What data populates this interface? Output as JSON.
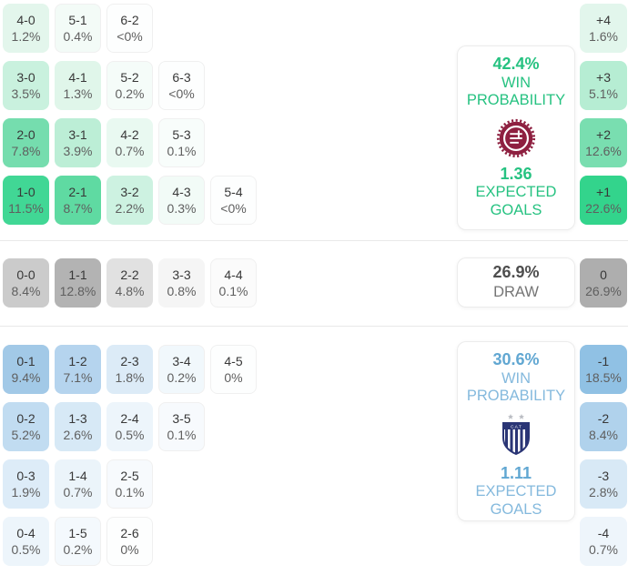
{
  "colors": {
    "green_accent": "#26c281",
    "blue_number": "#61a7d2",
    "blue_label": "#84b9dd",
    "draw_number": "#4e4e4e",
    "draw_label": "#757575"
  },
  "sections": {
    "home": {
      "win_probability": "42.4%",
      "win_probability_label": "WIN PROBABILITY",
      "expected_goals": "1.36",
      "expected_goals_label": "EXPECTED GOALS",
      "crest_icon": "circular-maroon-gear-crest-icon",
      "rows": [
        [
          {
            "score": "4-0",
            "pct": "1.2%",
            "bg": "#e3f6ec"
          },
          {
            "score": "5-1",
            "pct": "0.4%",
            "bg": "#f3fbf7"
          },
          {
            "score": "6-2",
            "pct": "<0%",
            "bg": "#fdfefe"
          }
        ],
        [
          {
            "score": "3-0",
            "pct": "3.5%",
            "bg": "#c9f1de"
          },
          {
            "score": "4-1",
            "pct": "1.3%",
            "bg": "#e0f6ea"
          },
          {
            "score": "5-2",
            "pct": "0.2%",
            "bg": "#f5fcf9"
          },
          {
            "score": "6-3",
            "pct": "<0%",
            "bg": "#fdfefe"
          }
        ],
        [
          {
            "score": "2-0",
            "pct": "7.8%",
            "bg": "#75ddae"
          },
          {
            "score": "3-1",
            "pct": "3.9%",
            "bg": "#bceed6"
          },
          {
            "score": "4-2",
            "pct": "0.7%",
            "bg": "#e9f9f1"
          },
          {
            "score": "5-3",
            "pct": "0.1%",
            "bg": "#f8fdfb"
          }
        ],
        [
          {
            "score": "1-0",
            "pct": "11.5%",
            "bg": "#41d795"
          },
          {
            "score": "2-1",
            "pct": "8.7%",
            "bg": "#5fdaa2"
          },
          {
            "score": "3-2",
            "pct": "2.2%",
            "bg": "#cdf2e1"
          },
          {
            "score": "4-3",
            "pct": "0.3%",
            "bg": "#f2fbf7"
          },
          {
            "score": "5-4",
            "pct": "<0%",
            "bg": "#fdfefe"
          }
        ]
      ],
      "diffs": [
        {
          "diff": "+4",
          "pct": "1.6%",
          "bg": "#e2f6ec"
        },
        {
          "diff": "+3",
          "pct": "5.1%",
          "bg": "#b6edd3"
        },
        {
          "diff": "+2",
          "pct": "12.6%",
          "bg": "#79deb0"
        },
        {
          "diff": "+1",
          "pct": "22.6%",
          "bg": "#33d48c"
        }
      ]
    },
    "draw": {
      "probability": "26.9%",
      "label": "DRAW",
      "rows": [
        [
          {
            "score": "0-0",
            "pct": "8.4%",
            "bg": "#cbcbcb"
          },
          {
            "score": "1-1",
            "pct": "12.8%",
            "bg": "#b3b3b3"
          },
          {
            "score": "2-2",
            "pct": "4.8%",
            "bg": "#e1e1e1"
          },
          {
            "score": "3-3",
            "pct": "0.8%",
            "bg": "#f5f5f5"
          },
          {
            "score": "4-4",
            "pct": "0.1%",
            "bg": "#fbfbfb"
          }
        ]
      ],
      "diffs": [
        {
          "diff": "0",
          "pct": "26.9%",
          "bg": "#aeaeae"
        }
      ]
    },
    "away": {
      "win_probability": "30.6%",
      "win_probability_label": "WIN PROBABILITY",
      "expected_goals": "1.11",
      "expected_goals_label": "EXPECTED GOALS",
      "crest_icon": "striped-navy-shield-crest-icon",
      "rows": [
        [
          {
            "score": "0-1",
            "pct": "9.4%",
            "bg": "#a2c9e7"
          },
          {
            "score": "1-2",
            "pct": "7.1%",
            "bg": "#b5d4ee"
          },
          {
            "score": "2-3",
            "pct": "1.8%",
            "bg": "#dcebf7"
          },
          {
            "score": "3-4",
            "pct": "0.2%",
            "bg": "#f1f8fc"
          },
          {
            "score": "4-5",
            "pct": "0%",
            "bg": "#fdfefe"
          }
        ],
        [
          {
            "score": "0-2",
            "pct": "5.2%",
            "bg": "#c1dcf1"
          },
          {
            "score": "1-3",
            "pct": "2.6%",
            "bg": "#d7e9f6"
          },
          {
            "score": "2-4",
            "pct": "0.5%",
            "bg": "#edf5fb"
          },
          {
            "score": "3-5",
            "pct": "0.1%",
            "bg": "#f7fafd"
          }
        ],
        [
          {
            "score": "0-3",
            "pct": "1.9%",
            "bg": "#ddecf8"
          },
          {
            "score": "1-4",
            "pct": "0.7%",
            "bg": "#ebf4fa"
          },
          {
            "score": "2-5",
            "pct": "0.1%",
            "bg": "#f7fafd"
          }
        ],
        [
          {
            "score": "0-4",
            "pct": "0.5%",
            "bg": "#edf5fb"
          },
          {
            "score": "1-5",
            "pct": "0.2%",
            "bg": "#f4f9fd"
          },
          {
            "score": "2-6",
            "pct": "0%",
            "bg": "#fdfefe"
          }
        ]
      ],
      "diffs": [
        {
          "diff": "-1",
          "pct": "18.5%",
          "bg": "#90c1e4"
        },
        {
          "diff": "-2",
          "pct": "8.4%",
          "bg": "#b0d2ec"
        },
        {
          "diff": "-3",
          "pct": "2.8%",
          "bg": "#d8e9f6"
        },
        {
          "diff": "-4",
          "pct": "0.7%",
          "bg": "#eef5fb"
        }
      ]
    }
  },
  "chart_data": {
    "type": "heatmap",
    "title": "Correct score probability matrix with win/draw probabilities and expected goals",
    "home": {
      "win_probability_pct": 42.4,
      "expected_goals": 1.36,
      "scores": [
        {
          "score": "4-0",
          "pct": "1.2%"
        },
        {
          "score": "5-1",
          "pct": "0.4%"
        },
        {
          "score": "6-2",
          "pct": "<0%"
        },
        {
          "score": "3-0",
          "pct": "3.5%"
        },
        {
          "score": "4-1",
          "pct": "1.3%"
        },
        {
          "score": "5-2",
          "pct": "0.2%"
        },
        {
          "score": "6-3",
          "pct": "<0%"
        },
        {
          "score": "2-0",
          "pct": "7.8%"
        },
        {
          "score": "3-1",
          "pct": "3.9%"
        },
        {
          "score": "4-2",
          "pct": "0.7%"
        },
        {
          "score": "5-3",
          "pct": "0.1%"
        },
        {
          "score": "1-0",
          "pct": "11.5%"
        },
        {
          "score": "2-1",
          "pct": "8.7%"
        },
        {
          "score": "3-2",
          "pct": "2.2%"
        },
        {
          "score": "4-3",
          "pct": "0.3%"
        },
        {
          "score": "5-4",
          "pct": "<0%"
        }
      ],
      "goal_diffs": [
        {
          "diff": "+4",
          "pct": "1.6%"
        },
        {
          "diff": "+3",
          "pct": "5.1%"
        },
        {
          "diff": "+2",
          "pct": "12.6%"
        },
        {
          "diff": "+1",
          "pct": "22.6%"
        }
      ]
    },
    "draw": {
      "probability_pct": 26.9,
      "scores": [
        {
          "score": "0-0",
          "pct": "8.4%"
        },
        {
          "score": "1-1",
          "pct": "12.8%"
        },
        {
          "score": "2-2",
          "pct": "4.8%"
        },
        {
          "score": "3-3",
          "pct": "0.8%"
        },
        {
          "score": "4-4",
          "pct": "0.1%"
        }
      ],
      "goal_diffs": [
        {
          "diff": "0",
          "pct": "26.9%"
        }
      ]
    },
    "away": {
      "win_probability_pct": 30.6,
      "expected_goals": 1.11,
      "scores": [
        {
          "score": "0-1",
          "pct": "9.4%"
        },
        {
          "score": "1-2",
          "pct": "7.1%"
        },
        {
          "score": "2-3",
          "pct": "1.8%"
        },
        {
          "score": "3-4",
          "pct": "0.2%"
        },
        {
          "score": "4-5",
          "pct": "0%"
        },
        {
          "score": "0-2",
          "pct": "5.2%"
        },
        {
          "score": "1-3",
          "pct": "2.6%"
        },
        {
          "score": "2-4",
          "pct": "0.5%"
        },
        {
          "score": "3-5",
          "pct": "0.1%"
        },
        {
          "score": "0-3",
          "pct": "1.9%"
        },
        {
          "score": "1-4",
          "pct": "0.7%"
        },
        {
          "score": "2-5",
          "pct": "0.1%"
        },
        {
          "score": "0-4",
          "pct": "0.5%"
        },
        {
          "score": "1-5",
          "pct": "0.2%"
        },
        {
          "score": "2-6",
          "pct": "0%"
        }
      ],
      "goal_diffs": [
        {
          "diff": "-1",
          "pct": "18.5%"
        },
        {
          "diff": "-2",
          "pct": "8.4%"
        },
        {
          "diff": "-3",
          "pct": "2.8%"
        },
        {
          "diff": "-4",
          "pct": "0.7%"
        }
      ]
    }
  }
}
